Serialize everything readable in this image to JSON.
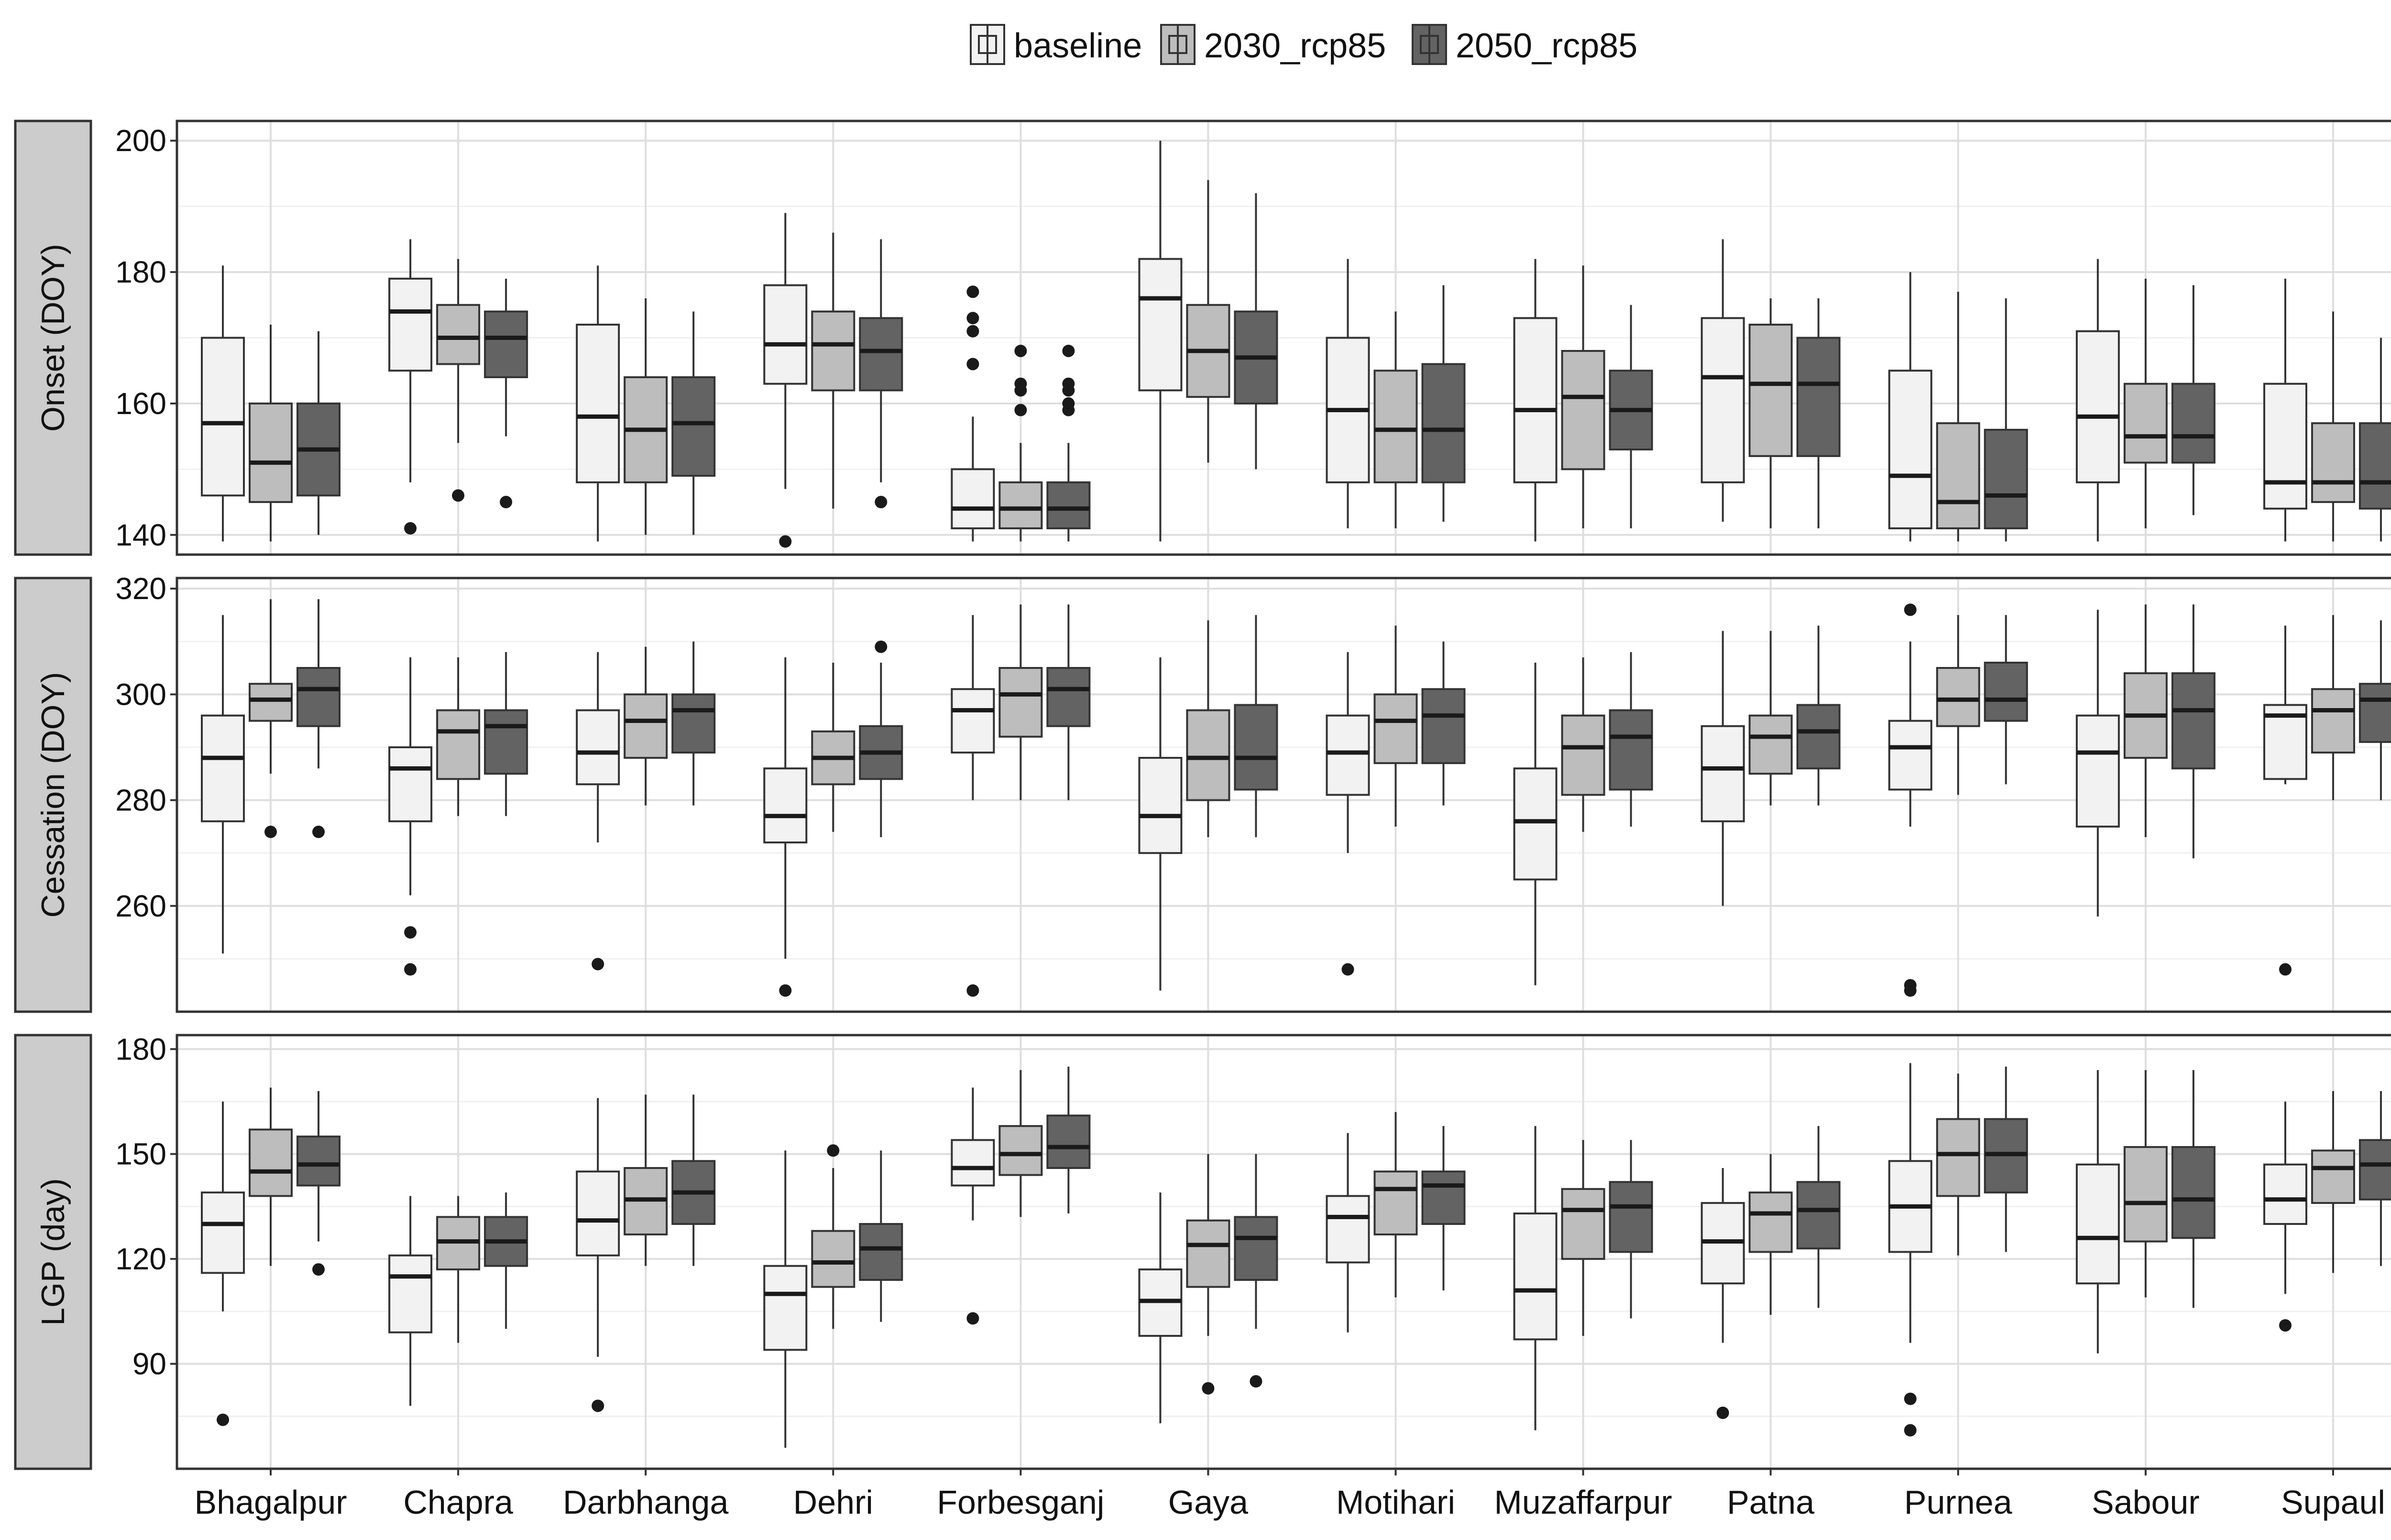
{
  "chart_data": {
    "type": "boxplot",
    "title": "",
    "legend": {
      "position": "top",
      "entries": [
        {
          "name": "baseline",
          "color": "#f2f2f2"
        },
        {
          "name": "2030_rcp85",
          "color": "#bdbdbd"
        },
        {
          "name": "2050_rcp85",
          "color": "#636363"
        }
      ]
    },
    "categories": [
      "Bhagalpur",
      "Chapra",
      "Darbhanga",
      "Dehri",
      "Forbesganj",
      "Gaya",
      "Motihari",
      "Muzaffarpur",
      "Patna",
      "Purnea",
      "Sabour",
      "Supaul"
    ],
    "series_names": [
      "baseline",
      "2030_rcp85",
      "2050_rcp85"
    ],
    "grid": true,
    "panels": [
      {
        "ylabel": "Onset (DOY)",
        "ylim": [
          137,
          203
        ],
        "yticks": [
          140,
          160,
          180,
          200
        ],
        "boxes": [
          [
            [
              139,
              146,
              157,
              170,
              181,
              []
            ],
            [
              139,
              145,
              151,
              160,
              172,
              []
            ],
            [
              140,
              146,
              153,
              160,
              171,
              []
            ]
          ],
          [
            [
              148,
              165,
              174,
              179,
              185,
              [
                141
              ]
            ],
            [
              154,
              166,
              170,
              175,
              182,
              [
                146
              ]
            ],
            [
              155,
              164,
              170,
              174,
              179,
              [
                145
              ]
            ]
          ],
          [
            [
              139,
              148,
              158,
              172,
              181,
              []
            ],
            [
              140,
              148,
              156,
              164,
              176,
              []
            ],
            [
              140,
              149,
              157,
              164,
              174,
              []
            ]
          ],
          [
            [
              147,
              163,
              169,
              178,
              189,
              [
                139
              ]
            ],
            [
              144,
              162,
              169,
              174,
              186,
              []
            ],
            [
              148,
              162,
              168,
              173,
              185,
              [
                145
              ]
            ]
          ],
          [
            [
              139,
              141,
              144,
              150,
              158,
              [
                166,
                171,
                173,
                177
              ]
            ],
            [
              139,
              141,
              144,
              148,
              154,
              [
                159,
                162,
                163,
                168
              ]
            ],
            [
              139,
              141,
              144,
              148,
              154,
              [
                159,
                160,
                162,
                163,
                168
              ]
            ]
          ],
          [
            [
              139,
              162,
              176,
              182,
              200,
              []
            ],
            [
              151,
              161,
              168,
              175,
              194,
              []
            ],
            [
              150,
              160,
              167,
              174,
              192,
              []
            ]
          ],
          [
            [
              141,
              148,
              159,
              170,
              182,
              []
            ],
            [
              141,
              148,
              156,
              165,
              174,
              []
            ],
            [
              142,
              148,
              156,
              166,
              178,
              []
            ]
          ],
          [
            [
              139,
              148,
              159,
              173,
              182,
              []
            ],
            [
              141,
              150,
              161,
              168,
              181,
              []
            ],
            [
              141,
              153,
              159,
              165,
              175,
              []
            ]
          ],
          [
            [
              142,
              148,
              164,
              173,
              185,
              []
            ],
            [
              141,
              152,
              163,
              172,
              176,
              []
            ],
            [
              141,
              152,
              163,
              170,
              176,
              []
            ]
          ],
          [
            [
              139,
              141,
              149,
              165,
              180,
              []
            ],
            [
              139,
              141,
              145,
              157,
              177,
              []
            ],
            [
              139,
              141,
              146,
              156,
              176,
              []
            ]
          ],
          [
            [
              139,
              148,
              158,
              171,
              182,
              []
            ],
            [
              141,
              151,
              155,
              163,
              179,
              []
            ],
            [
              143,
              151,
              155,
              163,
              178,
              []
            ]
          ],
          [
            [
              139,
              144,
              148,
              163,
              179,
              []
            ],
            [
              139,
              145,
              148,
              157,
              174,
              []
            ],
            [
              139,
              144,
              148,
              157,
              170,
              []
            ]
          ]
        ]
      },
      {
        "ylabel": "Cessation (DOY)",
        "ylim": [
          240,
          322
        ],
        "yticks": [
          260,
          280,
          300,
          320
        ],
        "boxes": [
          [
            [
              251,
              276,
              288,
              296,
              315,
              []
            ],
            [
              285,
              295,
              299,
              302,
              318,
              [
                274
              ]
            ],
            [
              286,
              294,
              301,
              305,
              318,
              [
                274
              ]
            ]
          ],
          [
            [
              262,
              276,
              286,
              290,
              307,
              [
                248,
                255
              ]
            ],
            [
              277,
              284,
              293,
              297,
              307,
              []
            ],
            [
              277,
              285,
              294,
              297,
              308,
              []
            ]
          ],
          [
            [
              272,
              283,
              289,
              297,
              308,
              [
                249
              ]
            ],
            [
              279,
              288,
              295,
              300,
              309,
              []
            ],
            [
              279,
              289,
              297,
              300,
              310,
              []
            ]
          ],
          [
            [
              250,
              272,
              277,
              286,
              307,
              [
                244
              ]
            ],
            [
              274,
              283,
              288,
              293,
              306,
              []
            ],
            [
              273,
              284,
              289,
              294,
              306,
              [
                309
              ]
            ]
          ],
          [
            [
              280,
              289,
              297,
              301,
              315,
              [
                244
              ]
            ],
            [
              280,
              292,
              300,
              305,
              317,
              []
            ],
            [
              280,
              294,
              301,
              305,
              317,
              []
            ]
          ],
          [
            [
              244,
              270,
              277,
              288,
              307,
              []
            ],
            [
              273,
              280,
              288,
              297,
              314,
              []
            ],
            [
              273,
              282,
              288,
              298,
              315,
              []
            ]
          ],
          [
            [
              270,
              281,
              289,
              296,
              308,
              [
                248
              ]
            ],
            [
              275,
              287,
              295,
              300,
              313,
              []
            ],
            [
              279,
              287,
              296,
              301,
              310,
              []
            ]
          ],
          [
            [
              245,
              265,
              276,
              286,
              306,
              []
            ],
            [
              274,
              281,
              290,
              296,
              307,
              []
            ],
            [
              275,
              282,
              292,
              297,
              308,
              []
            ]
          ],
          [
            [
              260,
              276,
              286,
              294,
              312,
              []
            ],
            [
              279,
              285,
              292,
              296,
              312,
              []
            ],
            [
              279,
              286,
              293,
              298,
              313,
              []
            ]
          ],
          [
            [
              275,
              282,
              290,
              295,
              310,
              [
                244,
                245,
                316
              ]
            ],
            [
              281,
              294,
              299,
              305,
              315,
              []
            ],
            [
              283,
              295,
              299,
              306,
              315,
              []
            ]
          ],
          [
            [
              258,
              275,
              289,
              296,
              316,
              []
            ],
            [
              273,
              288,
              296,
              304,
              317,
              []
            ],
            [
              269,
              286,
              297,
              304,
              317,
              []
            ]
          ],
          [
            [
              283,
              284,
              296,
              298,
              313,
              [
                248
              ]
            ],
            [
              280,
              289,
              297,
              301,
              315,
              []
            ],
            [
              280,
              291,
              299,
              302,
              314,
              []
            ]
          ]
        ]
      },
      {
        "ylabel": "LGP (day)",
        "ylim": [
          60,
          184
        ],
        "yticks": [
          90,
          120,
          150,
          180
        ],
        "boxes": [
          [
            [
              105,
              116,
              130,
              139,
              165,
              [
                74
              ]
            ],
            [
              118,
              138,
              145,
              157,
              169,
              []
            ],
            [
              125,
              141,
              147,
              155,
              168,
              [
                117
              ]
            ]
          ],
          [
            [
              78,
              99,
              115,
              121,
              138,
              []
            ],
            [
              96,
              117,
              125,
              132,
              138,
              []
            ],
            [
              100,
              118,
              125,
              132,
              139,
              []
            ]
          ],
          [
            [
              92,
              121,
              131,
              145,
              166,
              [
                78
              ]
            ],
            [
              118,
              127,
              137,
              146,
              167,
              []
            ],
            [
              118,
              130,
              139,
              148,
              167,
              []
            ]
          ],
          [
            [
              66,
              94,
              110,
              118,
              151,
              []
            ],
            [
              100,
              112,
              119,
              128,
              146,
              [
                151
              ]
            ],
            [
              102,
              114,
              123,
              130,
              151,
              []
            ]
          ],
          [
            [
              131,
              141,
              146,
              154,
              169,
              [
                103
              ]
            ],
            [
              132,
              144,
              150,
              158,
              174,
              []
            ],
            [
              133,
              146,
              152,
              161,
              175,
              []
            ]
          ],
          [
            [
              73,
              98,
              108,
              117,
              139,
              []
            ],
            [
              98,
              112,
              124,
              131,
              150,
              [
                83
              ]
            ],
            [
              100,
              114,
              126,
              132,
              150,
              [
                85
              ]
            ]
          ],
          [
            [
              99,
              119,
              132,
              138,
              156,
              []
            ],
            [
              109,
              127,
              140,
              145,
              162,
              []
            ],
            [
              111,
              130,
              141,
              145,
              158,
              []
            ]
          ],
          [
            [
              71,
              97,
              111,
              133,
              158,
              []
            ],
            [
              98,
              120,
              134,
              140,
              154,
              []
            ],
            [
              103,
              122,
              135,
              142,
              154,
              []
            ]
          ],
          [
            [
              96,
              113,
              125,
              136,
              146,
              [
                76
              ]
            ],
            [
              104,
              122,
              133,
              139,
              150,
              []
            ],
            [
              106,
              123,
              134,
              142,
              158,
              []
            ]
          ],
          [
            [
              96,
              122,
              135,
              148,
              176,
              [
                71,
                80
              ]
            ],
            [
              121,
              138,
              150,
              160,
              173,
              []
            ],
            [
              122,
              139,
              150,
              160,
              175,
              []
            ]
          ],
          [
            [
              93,
              113,
              126,
              147,
              174,
              []
            ],
            [
              109,
              125,
              136,
              152,
              174,
              []
            ],
            [
              106,
              126,
              137,
              152,
              174,
              []
            ]
          ],
          [
            [
              110,
              130,
              137,
              147,
              165,
              [
                101
              ]
            ],
            [
              116,
              136,
              146,
              151,
              168,
              []
            ],
            [
              118,
              137,
              147,
              154,
              168,
              []
            ]
          ]
        ]
      }
    ]
  }
}
